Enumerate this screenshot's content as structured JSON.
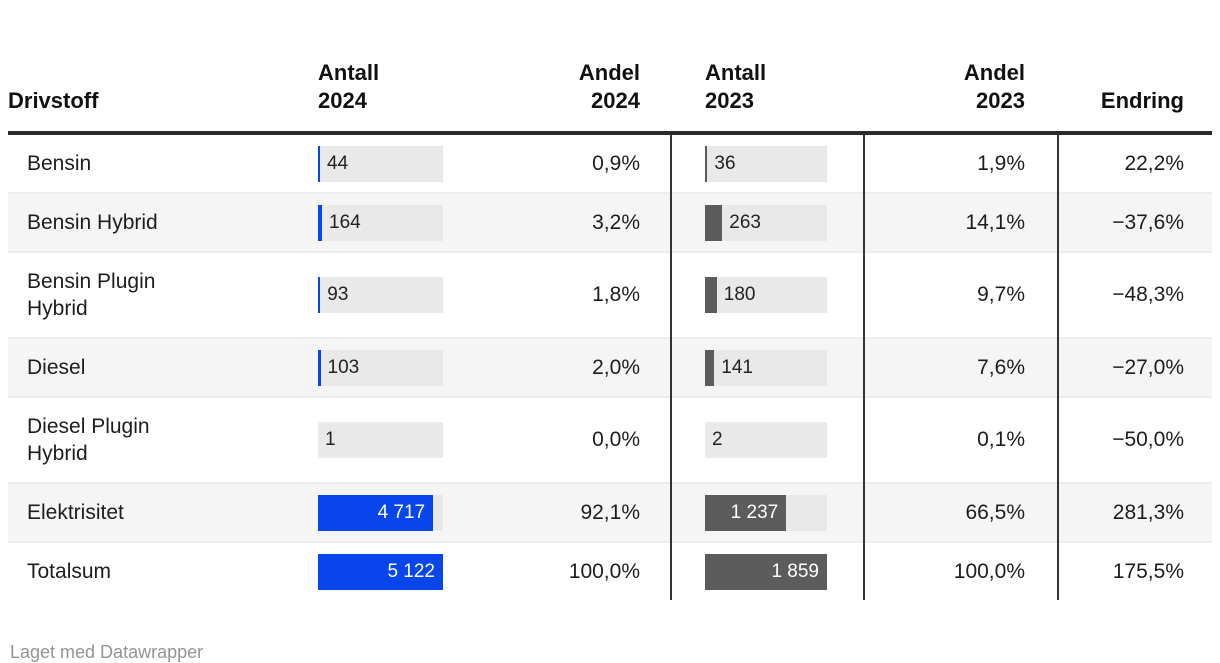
{
  "colors": {
    "bar_2024": "#0846eb",
    "bar_2023": "#5c5c5c",
    "bar_track": "#e9e9e9",
    "row_stripe": "#f5f5f5",
    "column_divider": "#333333",
    "header_border": "#2b2b2b",
    "text": "#1d1d1d",
    "footer_text": "#949494"
  },
  "table": {
    "columns": [
      {
        "id": "drivstoff",
        "label": "Drivstoff"
      },
      {
        "id": "antall_2024",
        "label": "Antall\n2024"
      },
      {
        "id": "andel_2024",
        "label": "Andel\n2024"
      },
      {
        "id": "antall_2023",
        "label": "Antall\n2023"
      },
      {
        "id": "andel_2023",
        "label": "Andel\n2023"
      },
      {
        "id": "endring",
        "label": "Endring"
      }
    ],
    "rows": [
      {
        "drivstoff": "Bensin",
        "antall_2024": "44",
        "n2024": 44,
        "andel_2024": "0,9%",
        "antall_2023": "36",
        "n2023": 36,
        "andel_2023": "1,9%",
        "endring": "22,2%"
      },
      {
        "drivstoff": "Bensin Hybrid",
        "antall_2024": "164",
        "n2024": 164,
        "andel_2024": "3,2%",
        "antall_2023": "263",
        "n2023": 263,
        "andel_2023": "14,1%",
        "endring": "−37,6%"
      },
      {
        "drivstoff": "Bensin Plugin Hybrid",
        "antall_2024": "93",
        "n2024": 93,
        "andel_2024": "1,8%",
        "antall_2023": "180",
        "n2023": 180,
        "andel_2023": "9,7%",
        "endring": "−48,3%"
      },
      {
        "drivstoff": "Diesel",
        "antall_2024": "103",
        "n2024": 103,
        "andel_2024": "2,0%",
        "antall_2023": "141",
        "n2023": 141,
        "andel_2023": "7,6%",
        "endring": "−27,0%"
      },
      {
        "drivstoff": "Diesel Plugin Hybrid",
        "antall_2024": "1",
        "n2024": 1,
        "andel_2024": "0,0%",
        "antall_2023": "2",
        "n2023": 2,
        "andel_2023": "0,1%",
        "endring": "−50,0%"
      },
      {
        "drivstoff": "Elektrisitet",
        "antall_2024": "4 717",
        "n2024": 4717,
        "andel_2024": "92,1%",
        "antall_2023": "1 237",
        "n2023": 1237,
        "andel_2023": "66,5%",
        "endring": "281,3%"
      },
      {
        "drivstoff": "Totalsum",
        "antall_2024": "5 122",
        "n2024": 5122,
        "andel_2024": "100,0%",
        "antall_2023": "1 859",
        "n2023": 1859,
        "andel_2023": "100,0%",
        "endring": "175,5%"
      }
    ]
  },
  "footer": {
    "credit": "Laget med Datawrapper"
  },
  "chart_data": {
    "type": "table",
    "title": "",
    "categories": [
      "Bensin",
      "Bensin Hybrid",
      "Bensin Plugin Hybrid",
      "Diesel",
      "Diesel Plugin Hybrid",
      "Elektrisitet",
      "Totalsum"
    ],
    "series": [
      {
        "name": "Antall 2024",
        "values": [
          44,
          164,
          93,
          103,
          1,
          4717,
          5122
        ],
        "display": "bar",
        "bar_max": 5122
      },
      {
        "name": "Andel 2024 (%)",
        "values": [
          0.9,
          3.2,
          1.8,
          2.0,
          0.0,
          92.1,
          100.0
        ]
      },
      {
        "name": "Antall 2023",
        "values": [
          36,
          263,
          180,
          141,
          2,
          1237,
          1859
        ],
        "display": "bar",
        "bar_max": 1859
      },
      {
        "name": "Andel 2023 (%)",
        "values": [
          1.9,
          14.1,
          9.7,
          7.6,
          0.1,
          66.5,
          100.0
        ]
      },
      {
        "name": "Endring (%)",
        "values": [
          22.2,
          -37.6,
          -48.3,
          -27.0,
          -50.0,
          281.3,
          175.5
        ]
      }
    ],
    "legend_position": "none",
    "grid": "off",
    "notes": "Datawrapper-style table; embedded horizontal bars in both Antall columns are scaled to each column's maximum (5122 in 2024, 1859 in 2023)."
  }
}
